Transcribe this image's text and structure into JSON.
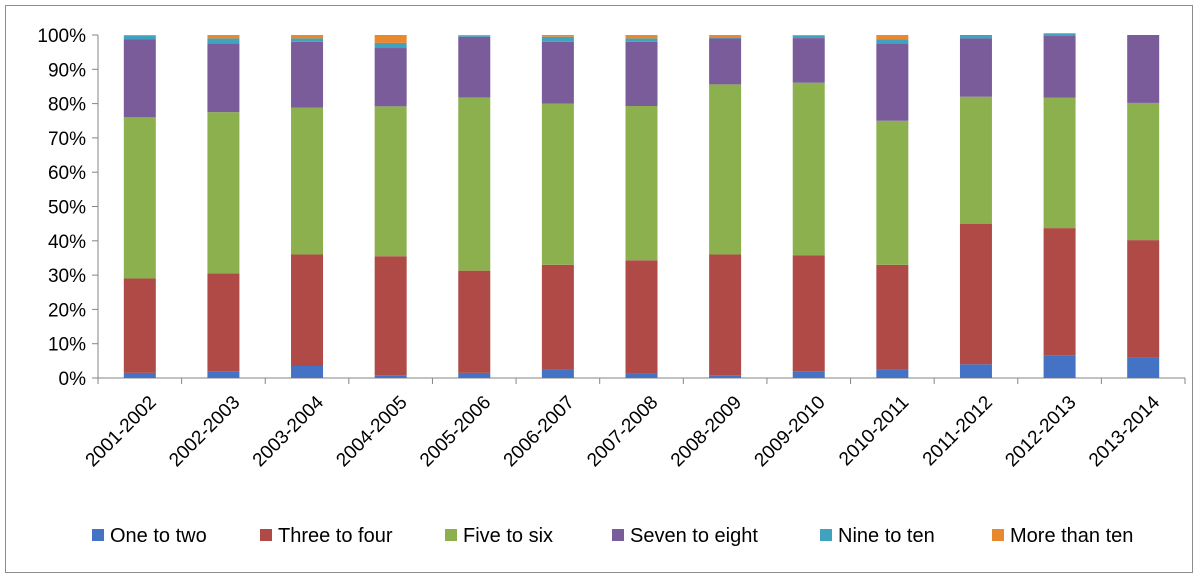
{
  "chart_data": {
    "type": "bar",
    "stacked": true,
    "percent": true,
    "title": "",
    "xlabel": "",
    "ylabel": "",
    "ylim": [
      0,
      100
    ],
    "yticks": [
      "0%",
      "10%",
      "20%",
      "30%",
      "40%",
      "50%",
      "60%",
      "70%",
      "80%",
      "90%",
      "100%"
    ],
    "grid": false,
    "legend_position": "bottom",
    "categories": [
      "2001-2002",
      "2002-2003",
      "2003-2004",
      "2004-2005",
      "2005-2006",
      "2006-2007",
      "2007-2008",
      "2008-2009",
      "2009-2010",
      "2010-2011",
      "2011-2012",
      "2012-2013",
      "2013-2014"
    ],
    "series": [
      {
        "name": "One to two",
        "color": "#4472C4",
        "values": [
          1.5,
          2.0,
          3.5,
          0.8,
          1.5,
          2.5,
          1.2,
          0.8,
          2.0,
          2.5,
          4.0,
          6.5,
          6.0
        ]
      },
      {
        "name": "Three to four",
        "color": "#B04A47",
        "values": [
          27.5,
          28.5,
          32.5,
          34.7,
          29.8,
          30.5,
          33.1,
          35.2,
          33.8,
          30.5,
          41.0,
          37.2,
          34.2
        ]
      },
      {
        "name": "Five to six",
        "color": "#8DB04F",
        "values": [
          47.0,
          47.0,
          42.8,
          43.7,
          50.5,
          47.0,
          45.0,
          49.6,
          50.3,
          42.0,
          37.0,
          38.0,
          40.0
        ]
      },
      {
        "name": "Seven to eight",
        "color": "#7A5C9A",
        "values": [
          22.8,
          20.0,
          19.2,
          17.0,
          17.7,
          18.0,
          18.7,
          13.4,
          13.0,
          22.5,
          17.0,
          18.0,
          19.8
        ]
      },
      {
        "name": "Nine to ten",
        "color": "#3FA3BF",
        "values": [
          1.0,
          1.5,
          1.0,
          1.5,
          0.3,
          1.5,
          1.0,
          0.3,
          0.7,
          1.2,
          1.0,
          0.8,
          0.0
        ]
      },
      {
        "name": "More than ten",
        "color": "#E8892F",
        "values": [
          0.2,
          1.0,
          1.0,
          2.3,
          0.2,
          0.5,
          1.0,
          0.7,
          0.2,
          1.3,
          0.0,
          0.0,
          0.0
        ]
      }
    ]
  }
}
